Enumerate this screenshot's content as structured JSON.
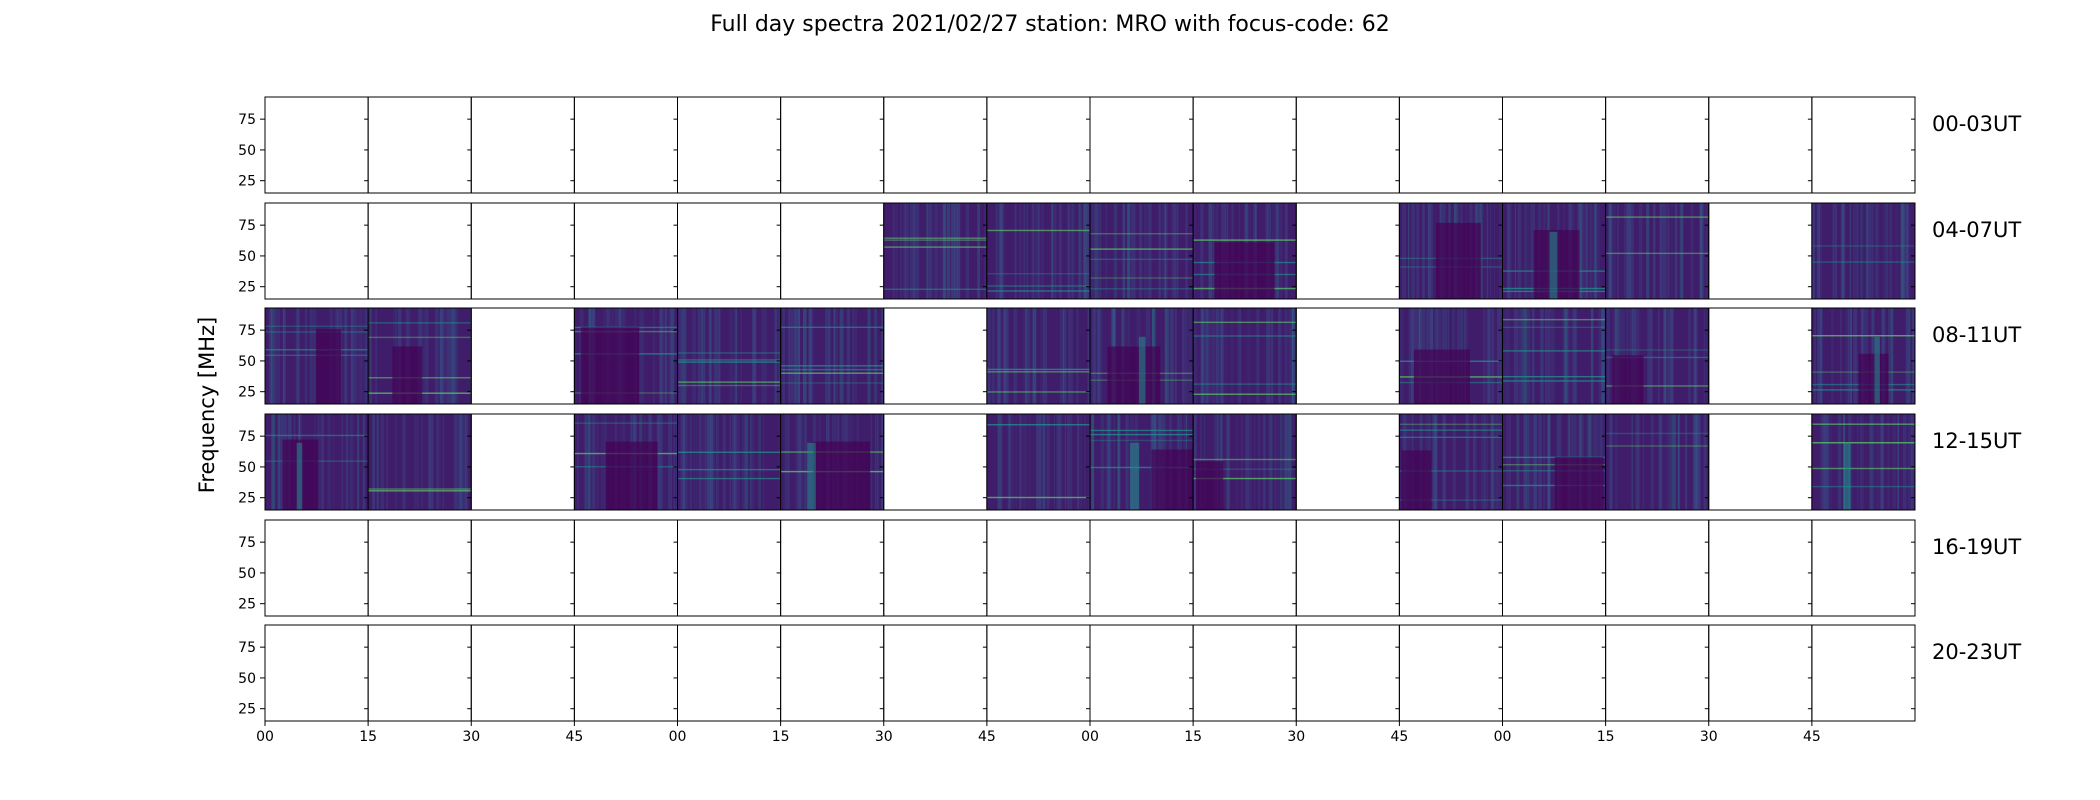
{
  "chart_data": {
    "type": "heatmap",
    "title": "Full day spectra 2021/02/27 station: MRO with focus-code: 62",
    "xlabel": "",
    "ylabel": "Frequency [MHz]",
    "ylim": [
      15,
      93
    ],
    "yticks": [
      "75",
      "50",
      "25"
    ],
    "xticks": [
      "00",
      "15",
      "30",
      "45",
      "00",
      "15",
      "30",
      "45",
      "00",
      "15",
      "30",
      "45",
      "00",
      "15",
      "30",
      "45"
    ],
    "columns_per_row": 16,
    "rows": [
      {
        "label": "00-03UT",
        "data": [
          0,
          0,
          0,
          0,
          0,
          0,
          0,
          0,
          0,
          0,
          0,
          0,
          0,
          0,
          0,
          0
        ]
      },
      {
        "label": "04-07UT",
        "data": [
          0,
          0,
          0,
          0,
          0,
          0,
          1,
          1,
          1,
          1,
          0,
          1,
          1,
          1,
          0,
          1
        ]
      },
      {
        "label": "08-11UT",
        "data": [
          1,
          1,
          0,
          1,
          1,
          1,
          0,
          1,
          1,
          1,
          0,
          1,
          1,
          1,
          0,
          1
        ]
      },
      {
        "label": "12-15UT",
        "data": [
          1,
          1,
          0,
          1,
          1,
          1,
          0,
          1,
          1,
          1,
          0,
          1,
          1,
          1,
          0,
          1
        ]
      },
      {
        "label": "16-19UT",
        "data": [
          0,
          0,
          0,
          0,
          0,
          0,
          0,
          0,
          0,
          0,
          0,
          0,
          0,
          0,
          0,
          0
        ]
      },
      {
        "label": "20-23UT",
        "data": [
          0,
          0,
          0,
          0,
          0,
          0,
          0,
          0,
          0,
          0,
          0,
          0,
          0,
          0,
          0,
          0
        ]
      }
    ],
    "colormap": [
      "#440154",
      "#3b528b",
      "#21918c",
      "#5ec962",
      "#fde725"
    ],
    "background_color": "#3f1d6b",
    "frame_color": "#000000"
  }
}
